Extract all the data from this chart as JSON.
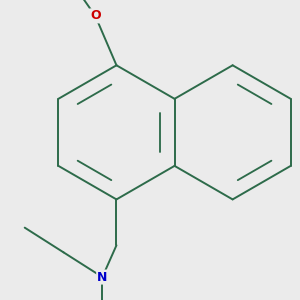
{
  "bg_color": "#ebebeb",
  "bond_color": "#2d6b4a",
  "atom_colors": {
    "O": "#cc0000",
    "N": "#0000cc"
  },
  "line_width": 1.4,
  "figsize": [
    3.0,
    3.0
  ],
  "dpi": 100
}
